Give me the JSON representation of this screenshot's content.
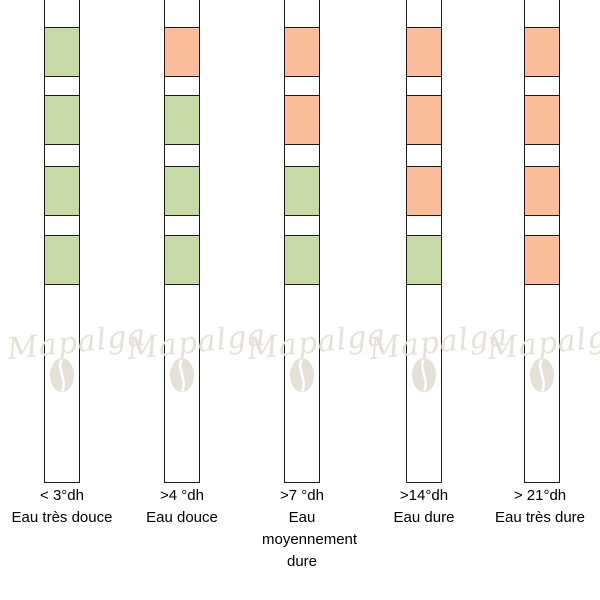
{
  "colors": {
    "green": "#c5daa6",
    "orange": "#fbbc9b",
    "empty": "#ffffff",
    "outline": "#1a1a1a",
    "watermark": "#e6e1d8"
  },
  "watermark_text": "Mapalga",
  "strips": [
    {
      "range": "< 3°dh",
      "description": "Eau très douce",
      "pads": [
        "green",
        "green",
        "green",
        "green"
      ]
    },
    {
      "range": ">4 °dh",
      "description": "Eau douce",
      "pads": [
        "orange",
        "green",
        "green",
        "green"
      ]
    },
    {
      "range": ">7 °dh",
      "description": "Eau moyennement dure",
      "pads": [
        "orange",
        "orange",
        "green",
        "green"
      ]
    },
    {
      "range": ">14°dh",
      "description": "Eau dure",
      "pads": [
        "orange",
        "orange",
        "orange",
        "green"
      ]
    },
    {
      "range": "> 21°dh",
      "description": "Eau très dure",
      "pads": [
        "orange",
        "orange",
        "orange",
        "orange"
      ]
    }
  ]
}
